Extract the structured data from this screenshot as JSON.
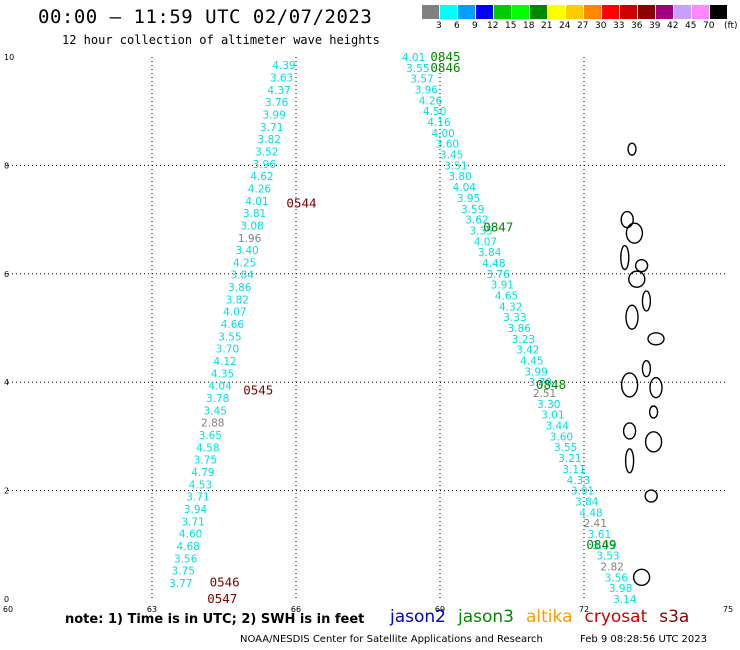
{
  "header": {
    "title": "00:00 – 11:59 UTC 02/07/2023",
    "subtitle": "12 hour collection of altimeter wave heights"
  },
  "colorbar": {
    "unit": "(ft)",
    "labels": [
      "3",
      "6",
      "9",
      "12",
      "15",
      "18",
      "21",
      "24",
      "27",
      "30",
      "33",
      "36",
      "39",
      "42",
      "45",
      "70"
    ],
    "colors": [
      "#808080",
      "#00ffff",
      "#00a0ff",
      "#0000ff",
      "#00cc00",
      "#00ff00",
      "#008800",
      "#ffff00",
      "#ffcc00",
      "#ff8800",
      "#ff0000",
      "#cc0000",
      "#880000",
      "#a00080",
      "#c8a0ff",
      "#ff88ff",
      "#000000"
    ]
  },
  "axes": {
    "lon_ticks": [
      60,
      63,
      66,
      69,
      72,
      75
    ],
    "lat_ticks": [
      0,
      2,
      4,
      6,
      8,
      10
    ],
    "lon_labels": [
      "60",
      "63",
      "66",
      "69",
      "72",
      "75"
    ],
    "lat_labels": [
      "0",
      "2",
      "4",
      "6",
      "8",
      "10"
    ]
  },
  "track_a": {
    "values": [
      "4.39",
      "3.63",
      "4.37",
      "3.76",
      "3.99",
      "3.71",
      "3.82",
      "3.52",
      "3.96",
      "4.62",
      "4.26",
      "4.01",
      "3.81",
      "3.08",
      "1.96",
      "3.40",
      "4.25",
      "3.84",
      "3.86",
      "3.82",
      "4.07",
      "4.66",
      "3.55",
      "3.70",
      "4.12",
      "4.35",
      "4.04",
      "3.78",
      "3.45",
      "2.88",
      "3.65",
      "4.58",
      "3.75",
      "4.79",
      "4.53",
      "3.71",
      "3.94",
      "3.71",
      "4.60",
      "4.68",
      "3.56",
      "3.75",
      "3.77"
    ],
    "lat_top": 9.85,
    "lat_step": 0.2275,
    "lon_top": 65.75,
    "lon_bottom": 63.6
  },
  "track_b": {
    "values": [
      "4.01",
      "3.55",
      "3.57",
      "3.96",
      "4.26",
      "4.50",
      "4.16",
      "4.00",
      "3.60",
      "3.45",
      "3.51",
      "3.80",
      "4.04",
      "3.95",
      "3.59",
      "3.62",
      "3.35",
      "4.07",
      "3.84",
      "4.48",
      "3.76",
      "3.91",
      "4.65",
      "4.32",
      "3.33",
      "3.86",
      "3.23",
      "3.42",
      "4.45",
      "3.99",
      "3.70",
      "2.51",
      "3.30",
      "3.01",
      "3.44",
      "3.60",
      "3.55",
      "3.21",
      "3.11",
      "4.33",
      "3.91",
      "3.84",
      "4.48",
      "2.41",
      "3.61",
      "3.05",
      "3.53",
      "2.82",
      "3.56",
      "3.98",
      "3.14"
    ],
    "lat_top": 10.0,
    "lat_step": 0.2,
    "lon_top": 68.45,
    "lon_bottom": 72.85
  },
  "time_labels": [
    {
      "text": "0544",
      "lon": 65.8,
      "lat": 7.3,
      "satellite": "cryosat"
    },
    {
      "text": "0545",
      "lon": 64.9,
      "lat": 3.85,
      "satellite": "cryosat"
    },
    {
      "text": "0546",
      "lon": 64.2,
      "lat": 0.3,
      "satellite": "cryosat"
    },
    {
      "text": "0547",
      "lon": 64.15,
      "lat": 0.0,
      "satellite": "cryosat"
    },
    {
      "text": "0845",
      "lon": 68.8,
      "lat": 10.0,
      "satellite": "jason3"
    },
    {
      "text": "0846",
      "lon": 68.8,
      "lat": 9.8,
      "satellite": "jason3"
    },
    {
      "text": "0847",
      "lon": 69.9,
      "lat": 6.85,
      "satellite": "jason3"
    },
    {
      "text": "0848",
      "lon": 71.0,
      "lat": 3.95,
      "satellite": "jason3"
    },
    {
      "text": "0849",
      "lon": 72.05,
      "lat": 1.0,
      "satellite": "jason3"
    }
  ],
  "islands": [
    {
      "lon": 73.0,
      "lat": 8.3
    },
    {
      "lon": 72.9,
      "lat": 7.0
    },
    {
      "lon": 73.05,
      "lat": 6.75
    },
    {
      "lon": 72.85,
      "lat": 6.3
    },
    {
      "lon": 73.2,
      "lat": 6.15
    },
    {
      "lon": 73.1,
      "lat": 5.9
    },
    {
      "lon": 73.3,
      "lat": 5.5
    },
    {
      "lon": 73.0,
      "lat": 5.2
    },
    {
      "lon": 73.5,
      "lat": 4.8
    },
    {
      "lon": 73.3,
      "lat": 4.25
    },
    {
      "lon": 73.5,
      "lat": 3.9
    },
    {
      "lon": 72.95,
      "lat": 3.95
    },
    {
      "lon": 73.45,
      "lat": 3.45
    },
    {
      "lon": 72.95,
      "lat": 3.1
    },
    {
      "lon": 73.45,
      "lat": 2.9
    },
    {
      "lon": 72.95,
      "lat": 2.55
    },
    {
      "lon": 73.4,
      "lat": 1.9
    },
    {
      "lon": 73.2,
      "lat": 0.4
    }
  ],
  "footer": {
    "note": "note: 1) Time is in UTC; 2) SWH is in feet",
    "satellites": [
      {
        "name": "jason2",
        "color": "#0000cc"
      },
      {
        "name": "jason3",
        "color": "#008800"
      },
      {
        "name": "altika",
        "color": "#ff9900"
      },
      {
        "name": "cryosat",
        "color": "#cc0000"
      },
      {
        "name": "s3a",
        "color": "#880000"
      }
    ],
    "credit": "NOAA/NESDIS Center for Satellite Applications and Research",
    "timestamp": "Feb  9 08:28:56 UTC 2023"
  },
  "styles": {
    "wave_color": "#00e0e0",
    "low_wave_color": "#808080",
    "grid_color": "#000000",
    "cryosat_label_color": "#800000",
    "jason3_label_color": "#008800"
  }
}
